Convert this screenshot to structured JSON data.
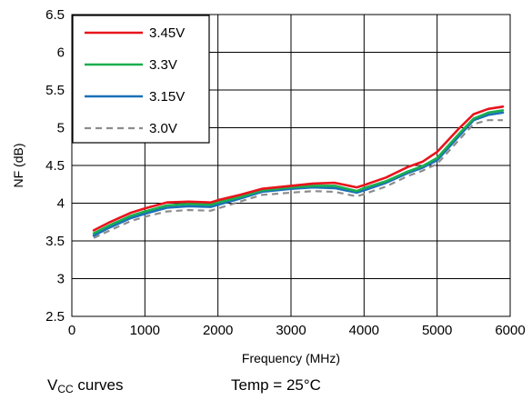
{
  "chart_data": {
    "type": "line",
    "xlabel": "Frequency (MHz)",
    "ylabel": "NF (dB)",
    "xlim": [
      0,
      6000
    ],
    "ylim": [
      2.5,
      6.5
    ],
    "xticks": [
      "0",
      "1000",
      "2000",
      "3000",
      "4000",
      "5000",
      "6000"
    ],
    "yticks": [
      "2.5",
      "3",
      "3.5",
      "4",
      "4.5",
      "5",
      "5.5",
      "6",
      "6.5"
    ],
    "grid": true,
    "legend_position": "top-left",
    "series": [
      {
        "name": "3.45V",
        "color": "#e8141c",
        "dashed": false,
        "x": [
          300,
          500,
          800,
          1000,
          1300,
          1600,
          1900,
          2000,
          2300,
          2600,
          3000,
          3300,
          3600,
          3900,
          4000,
          4300,
          4600,
          4800,
          5000,
          5300,
          5500,
          5700,
          5900
        ],
        "y": [
          3.64,
          3.74,
          3.87,
          3.93,
          4.01,
          4.02,
          4.01,
          4.04,
          4.11,
          4.19,
          4.23,
          4.26,
          4.27,
          4.21,
          4.24,
          4.34,
          4.48,
          4.55,
          4.68,
          4.99,
          5.18,
          5.25,
          5.28
        ]
      },
      {
        "name": "3.3V",
        "color": "#1aae4e",
        "dashed": false,
        "x": [
          300,
          500,
          800,
          1000,
          1300,
          1600,
          1900,
          2000,
          2300,
          2600,
          3000,
          3300,
          3600,
          3900,
          4000,
          4300,
          4600,
          4800,
          5000,
          5300,
          5500,
          5700,
          5900
        ],
        "y": [
          3.6,
          3.7,
          3.83,
          3.89,
          3.97,
          3.99,
          3.98,
          4.01,
          4.08,
          4.17,
          4.21,
          4.23,
          4.23,
          4.16,
          4.2,
          4.29,
          4.42,
          4.49,
          4.6,
          4.92,
          5.12,
          5.2,
          5.23
        ]
      },
      {
        "name": "3.15V",
        "color": "#1a70b8",
        "dashed": false,
        "x": [
          300,
          500,
          800,
          1000,
          1300,
          1600,
          1900,
          2000,
          2300,
          2600,
          3000,
          3300,
          3600,
          3900,
          4000,
          4300,
          4600,
          4800,
          5000,
          5300,
          5500,
          5700,
          5900
        ],
        "y": [
          3.57,
          3.67,
          3.8,
          3.86,
          3.94,
          3.96,
          3.95,
          3.98,
          4.06,
          4.15,
          4.19,
          4.21,
          4.2,
          4.14,
          4.17,
          4.27,
          4.4,
          4.47,
          4.57,
          4.89,
          5.1,
          5.17,
          5.2
        ]
      },
      {
        "name": "3.0V",
        "color": "#8c8c8c",
        "dashed": true,
        "x": [
          300,
          500,
          800,
          1000,
          1300,
          1600,
          1900,
          2000,
          2300,
          2600,
          3000,
          3300,
          3600,
          3900,
          4000,
          4300,
          4600,
          4800,
          5000,
          5300,
          5500,
          5700,
          5900
        ],
        "y": [
          3.54,
          3.63,
          3.76,
          3.82,
          3.89,
          3.91,
          3.9,
          3.93,
          4.02,
          4.11,
          4.14,
          4.16,
          4.15,
          4.09,
          4.12,
          4.22,
          4.36,
          4.43,
          4.52,
          4.84,
          5.05,
          5.1,
          5.1
        ]
      }
    ]
  },
  "notes": {
    "vcc_main": "V",
    "vcc_sub": "CC",
    "vcc_rest": " curves",
    "temp": "Temp = 25°C"
  }
}
